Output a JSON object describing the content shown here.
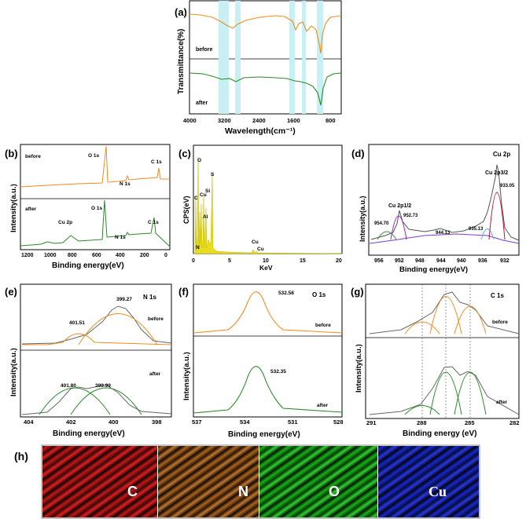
{
  "figure": {
    "colors": {
      "before": "#f08c1e",
      "after": "#2a8a2a",
      "highlight": "#c8f0f4",
      "axis": "#000000"
    },
    "panel_labels": [
      "(a)",
      "(b)",
      "(c)",
      "(d)",
      "(e)",
      "(f)",
      "(g)",
      "(h)"
    ]
  },
  "panel_a": {
    "ylabel": "Transmittance(%)",
    "xlabel": "Wavelength(cm⁻¹)",
    "xticks": [
      "4000",
      "3200",
      "2400",
      "1600",
      "800"
    ],
    "label_before": "before",
    "label_after": "after"
  },
  "panel_b": {
    "ylabel": "Intensity(a.u.)",
    "xlabel": "Binding energy(eV)",
    "xticks": [
      "1200",
      "1000",
      "800",
      "600",
      "400",
      "200",
      "0"
    ],
    "label_before": "before",
    "label_after": "after",
    "peaks_before": [
      "O 1s",
      "N 1s",
      "C 1s"
    ],
    "peaks_after": [
      "O 1s",
      "Cu 2p",
      "N 1s",
      "C 1s"
    ]
  },
  "panel_c": {
    "ylabel": "CPS(eV)",
    "xlabel": "KeV",
    "xticks": [
      "0",
      "5",
      "10",
      "15",
      "20"
    ],
    "peaks": [
      "O",
      "C",
      "Cu",
      "Si",
      "S",
      "Al",
      "N",
      "Cu",
      "Cu"
    ]
  },
  "panel_d": {
    "title": "Cu 2p",
    "ylabel": "Intensity(a.u.)",
    "xlabel": "Binding energy(eV)",
    "xticks": [
      "956",
      "952",
      "948",
      "944",
      "940",
      "936",
      "932"
    ],
    "peak_labels": [
      "954.70",
      "952.73",
      "944.13",
      "935.13",
      "933.05"
    ],
    "cu_half": "Cu 2p1/2",
    "cu_three_half": "Cu 2p3/2"
  },
  "panel_e": {
    "title": "N 1s",
    "ylabel": "Intensity(a.u.)",
    "xlabel": "Binding energy(eV)",
    "xticks": [
      "404",
      "402",
      "400",
      "398"
    ],
    "before_peaks": [
      "401.51",
      "399.27"
    ],
    "after_peaks": [
      "401.80",
      "399.99"
    ],
    "label_before": "before",
    "label_after": "after"
  },
  "panel_f": {
    "title": "O 1s",
    "ylabel": "Intensity(a.u.)",
    "xlabel": "Binding energy(eV)",
    "xticks": [
      "537",
      "534",
      "531",
      "528"
    ],
    "before_peak": "532.58",
    "after_peak": "532.35",
    "label_before": "before",
    "label_after": "after"
  },
  "panel_g": {
    "title": "C 1s",
    "ylabel": "Intensity(a.u.)",
    "xlabel": "Binding energy (eV)",
    "xticks": [
      "291",
      "288",
      "285",
      "282"
    ],
    "label_before": "before",
    "label_after": "after"
  },
  "panel_h": {
    "maps": [
      {
        "label": "C",
        "color": "#d42020"
      },
      {
        "label": "N",
        "color": "#c07830"
      },
      {
        "label": "O",
        "color": "#22c022"
      },
      {
        "label": "Cu",
        "color": "#2030d8"
      }
    ]
  }
}
